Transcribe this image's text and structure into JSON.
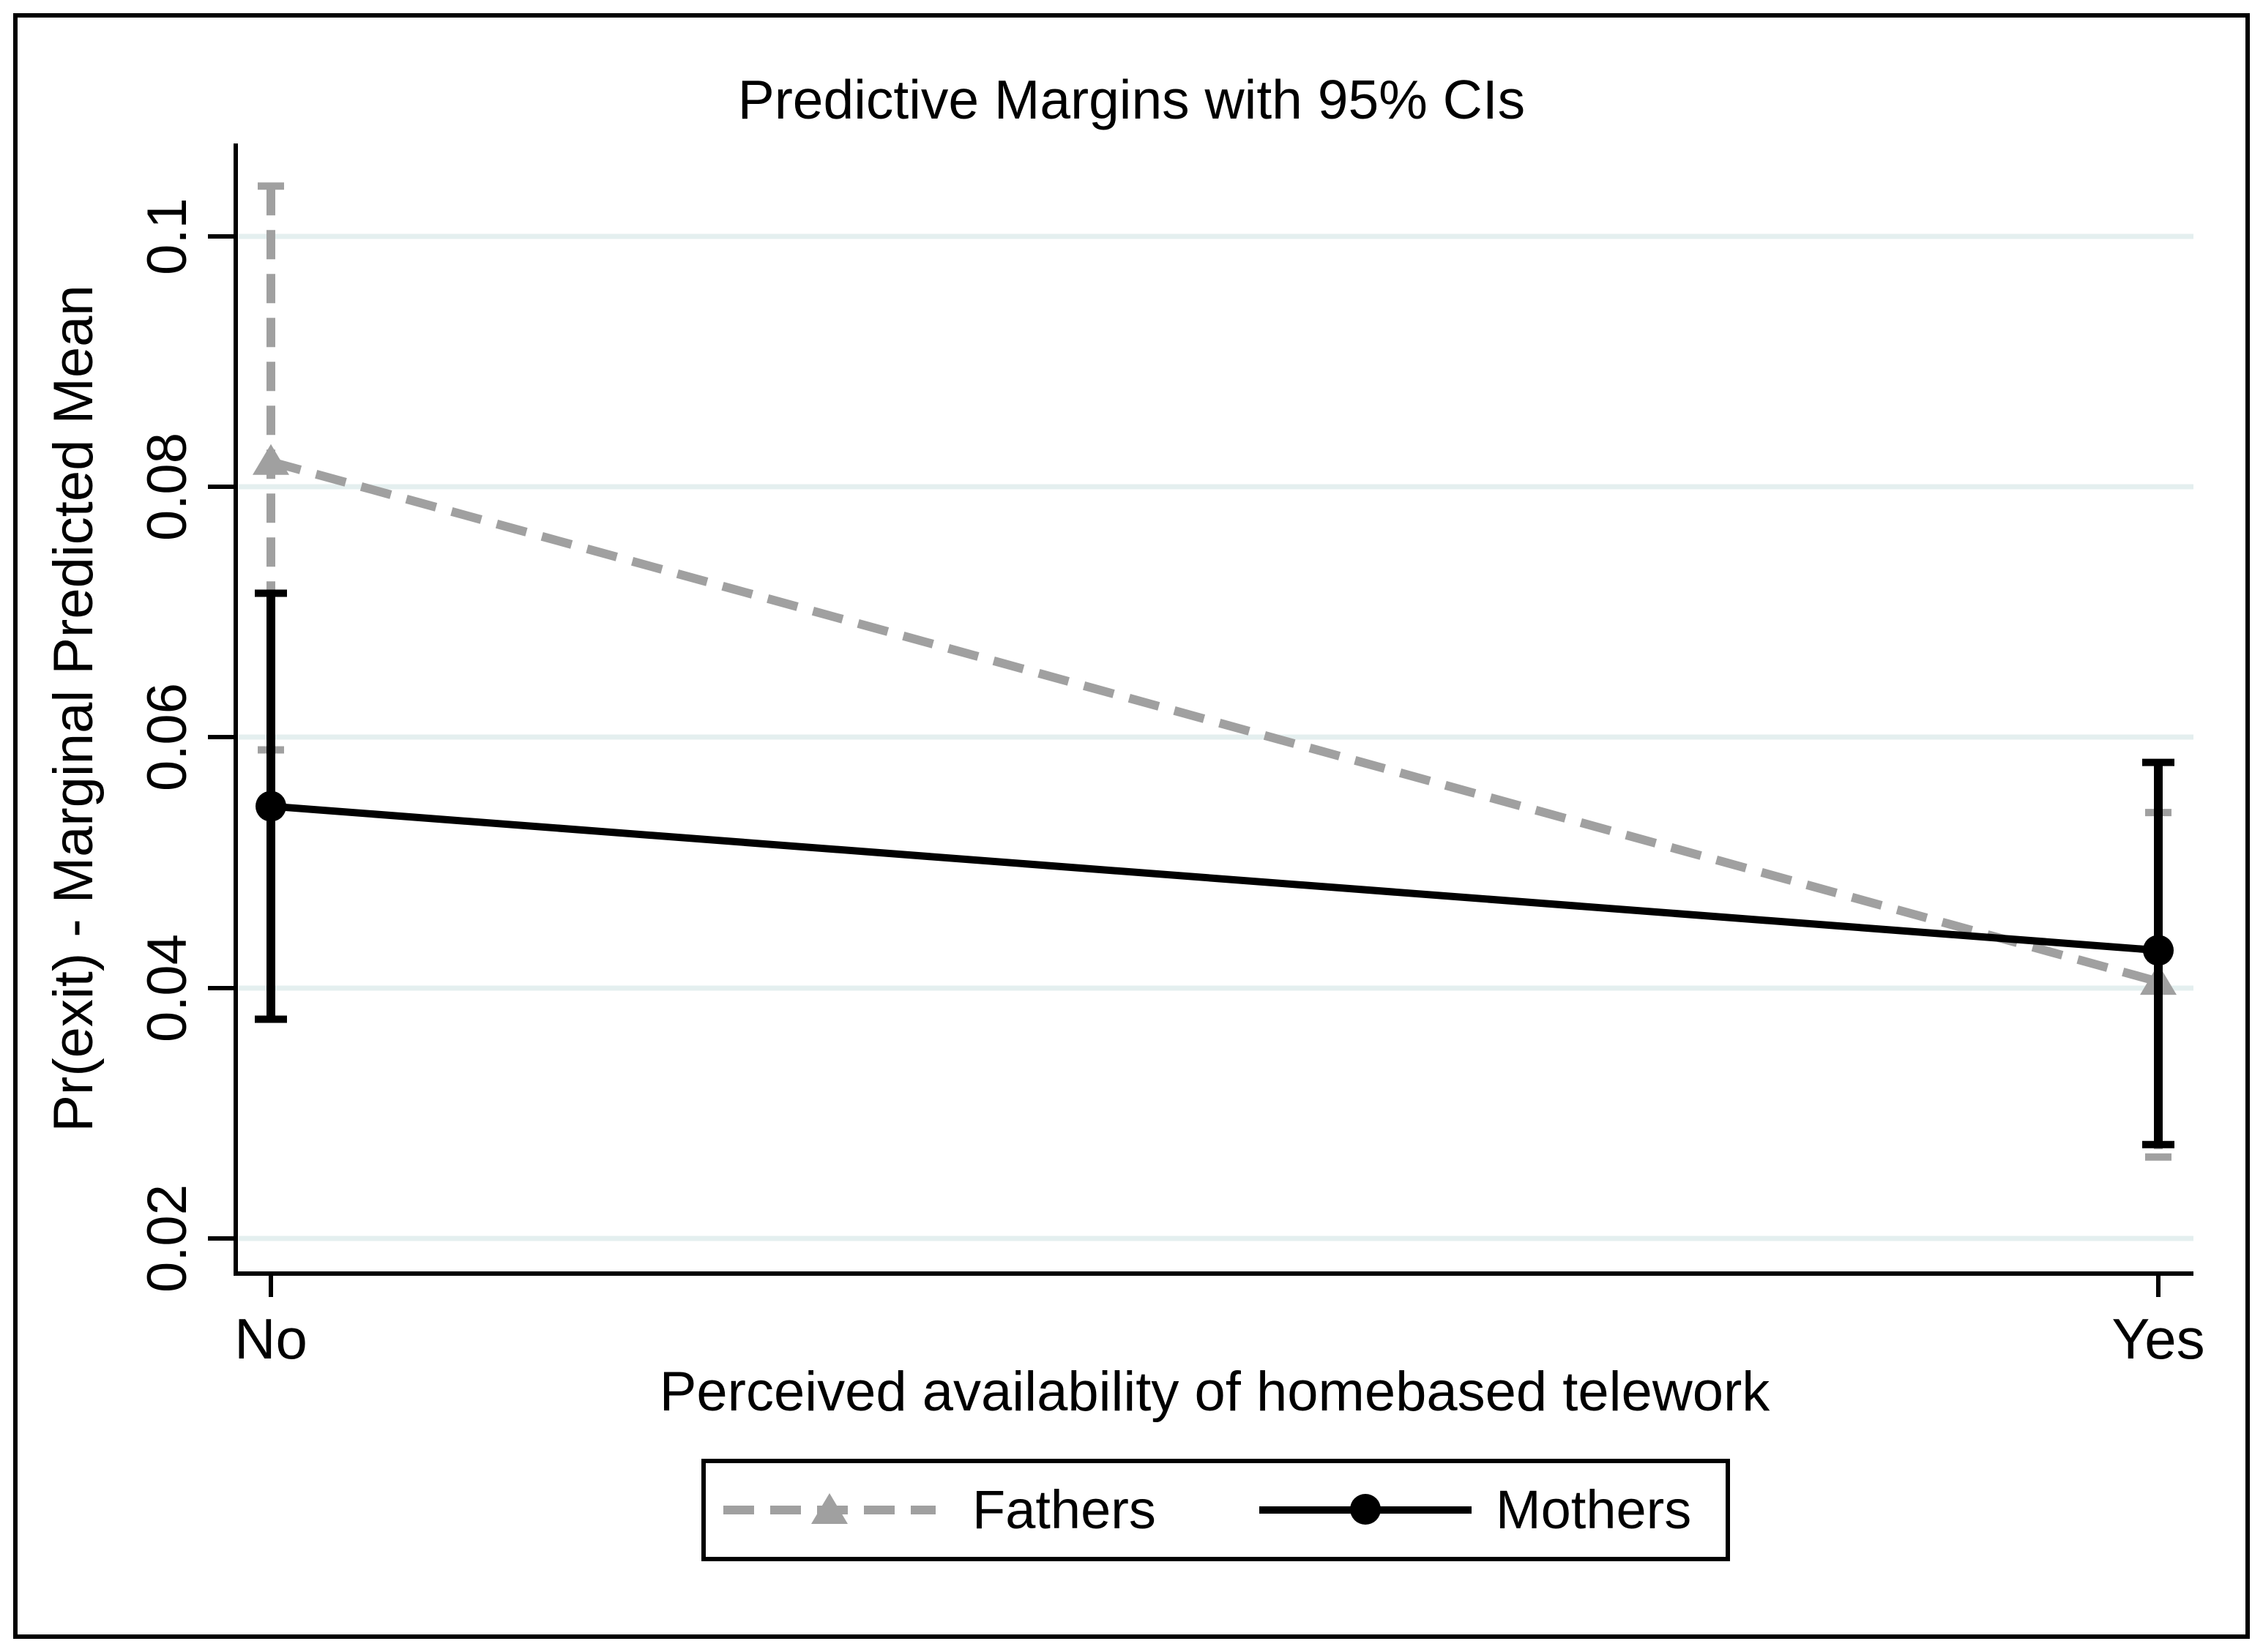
{
  "chart_data": {
    "type": "line",
    "title": "Predictive Margins with 95% CIs",
    "xlabel": "Perceived availability of homebased telework",
    "ylabel": "Pr(exit) - Marginal Predicted Mean",
    "categories": [
      "No",
      "Yes"
    ],
    "y_ticks": [
      0.02,
      0.04,
      0.06,
      0.08,
      0.1
    ],
    "y_tick_labels": [
      "0.02",
      "0.04",
      "0.06",
      "0.08",
      "0.1"
    ],
    "ylim": [
      0.0172,
      0.1074
    ],
    "grid": true,
    "grid_color": "#e4efef",
    "axis_color": "#000000",
    "background_color": "#ffffff",
    "legend_position": "bottom",
    "series": [
      {
        "name": "Fathers",
        "color": "#a0a0a0",
        "line_style": "dashed",
        "marker": "triangle",
        "values": [
          0.082,
          0.0405
        ],
        "ci_low": [
          0.059,
          0.0265
        ],
        "ci_high": [
          0.104,
          0.054
        ]
      },
      {
        "name": "Mothers",
        "color": "#000000",
        "line_style": "solid",
        "marker": "circle",
        "values": [
          0.0545,
          0.043
        ],
        "ci_low": [
          0.0375,
          0.0275
        ],
        "ci_high": [
          0.0715,
          0.058
        ]
      }
    ]
  }
}
